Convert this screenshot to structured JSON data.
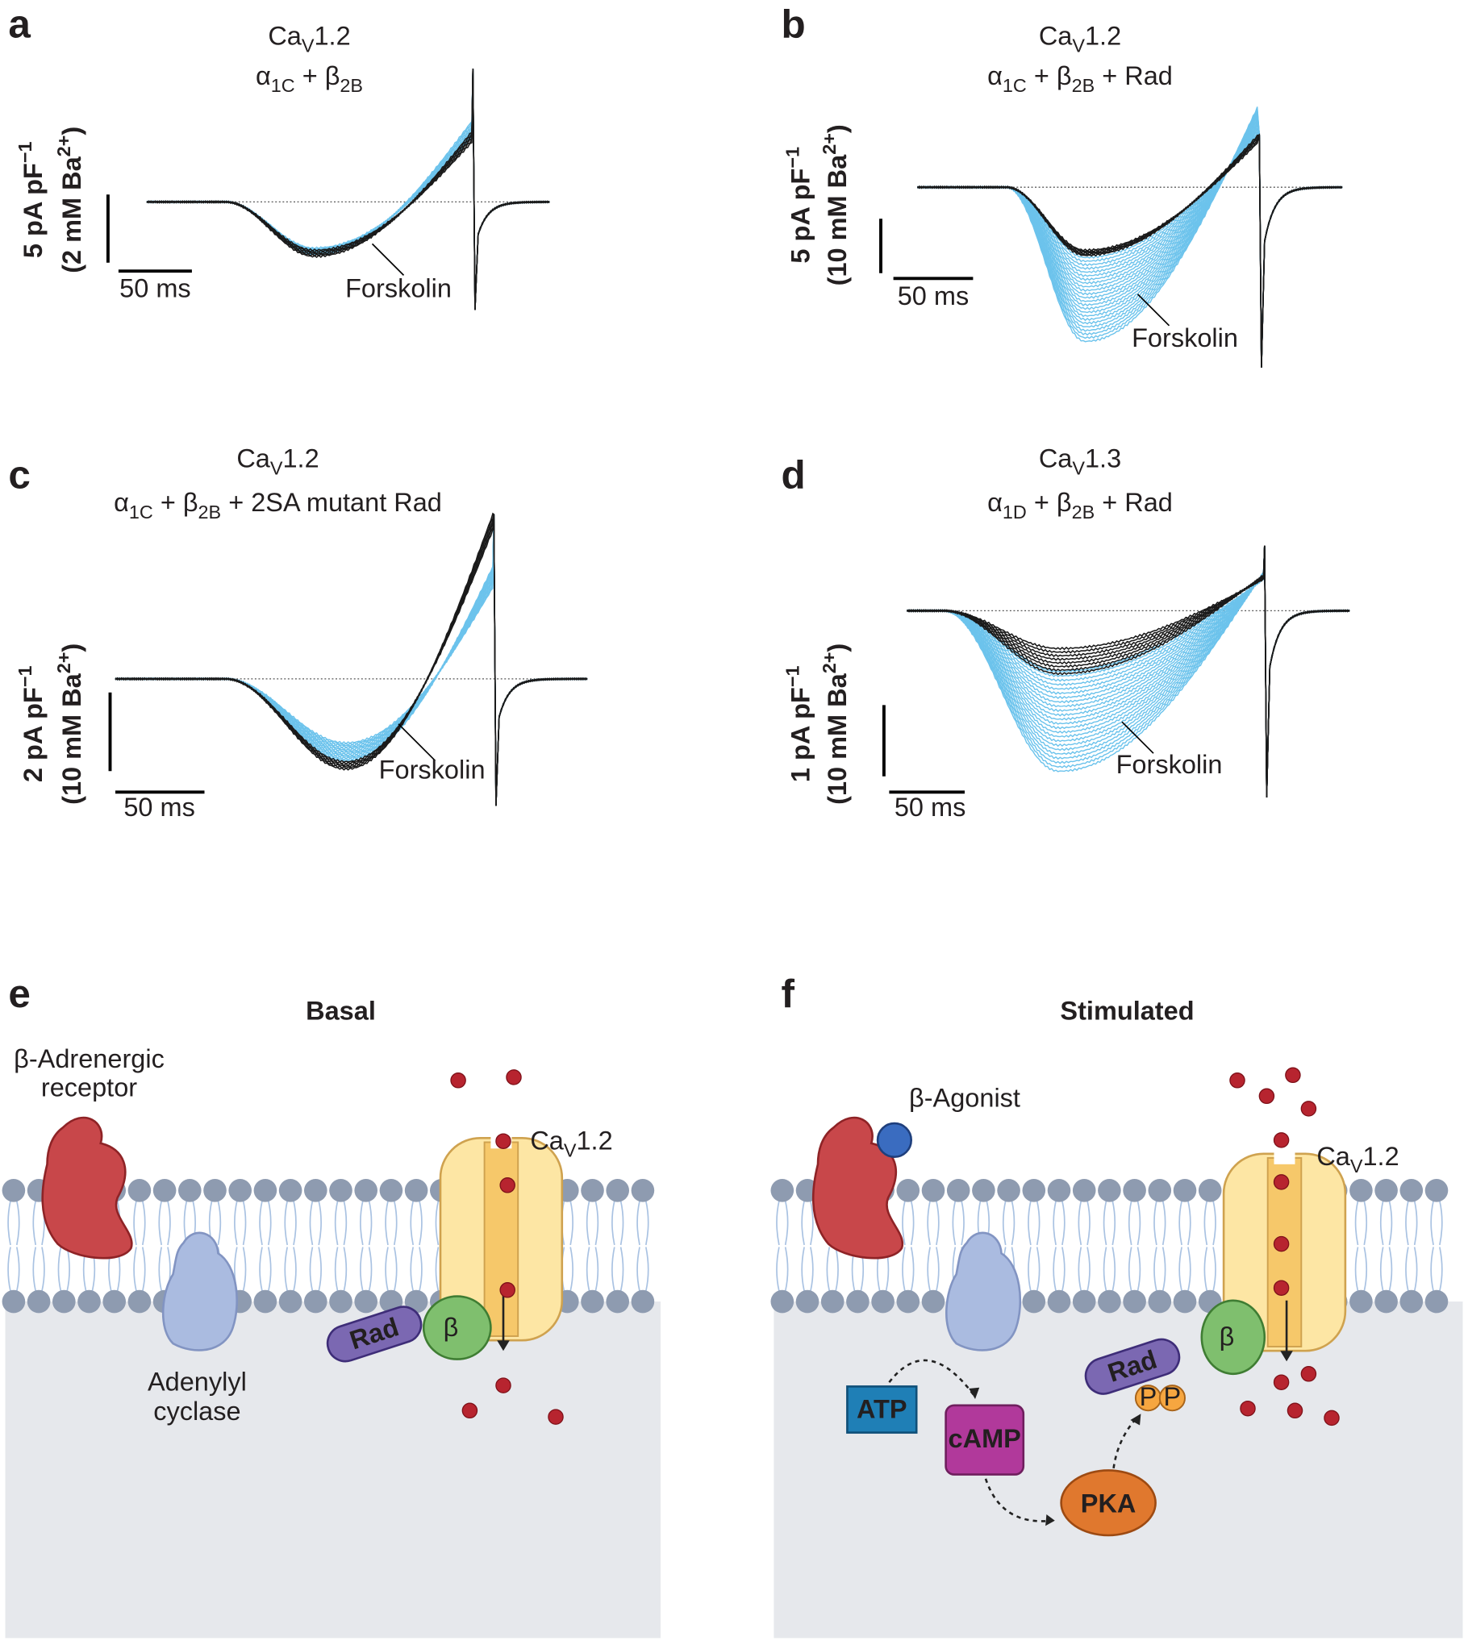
{
  "panels": [
    {
      "label": "a",
      "title": [
        [
          "Ca",
          {
            "sub": "V"
          },
          "1.2"
        ],
        [
          "α",
          {
            "sub": "1C"
          },
          " + β",
          {
            "sub": "2B"
          }
        ]
      ],
      "y_scale": [
        [
          "5 pA pF",
          {
            "sup": "−1"
          }
        ],
        [
          "(2 mM Ba",
          {
            "sup": "2+"
          },
          ")"
        ]
      ],
      "x_scale": "50 ms",
      "annotation": "Forskolin"
    },
    {
      "label": "b",
      "title": [
        [
          "Ca",
          {
            "sub": "V"
          },
          "1.2"
        ],
        [
          "α",
          {
            "sub": "1C"
          },
          " + β",
          {
            "sub": "2B"
          },
          " + Rad"
        ]
      ],
      "y_scale": [
        [
          "5 pA pF",
          {
            "sup": "−1"
          }
        ],
        [
          "(10 mM Ba",
          {
            "sup": "2+"
          },
          ")"
        ]
      ],
      "x_scale": "50 ms",
      "annotation": "Forskolin"
    },
    {
      "label": "c",
      "title": [
        [
          "Ca",
          {
            "sub": "V"
          },
          "1.2"
        ],
        [
          "α",
          {
            "sub": "1C"
          },
          " + β",
          {
            "sub": "2B"
          },
          " + 2SA mutant Rad"
        ]
      ],
      "y_scale": [
        [
          "2 pA pF",
          {
            "sup": "−1"
          }
        ],
        [
          "(10 mM Ba",
          {
            "sup": "2+"
          },
          ")"
        ]
      ],
      "x_scale": "50 ms",
      "annotation": "Forskolin"
    },
    {
      "label": "d",
      "title": [
        [
          "Ca",
          {
            "sub": "V"
          },
          "1.3"
        ],
        [
          "α",
          {
            "sub": "1D"
          },
          " + β",
          {
            "sub": "2B"
          },
          " + Rad"
        ]
      ],
      "y_scale": [
        [
          "1 pA pF",
          {
            "sup": "−1"
          }
        ],
        [
          "(10 mM Ba",
          {
            "sup": "2+"
          },
          ")"
        ]
      ],
      "x_scale": "50 ms",
      "annotation": "Forskolin"
    }
  ],
  "diagrams": [
    {
      "label": "e",
      "title": "Basal",
      "receptor": [
        "β-Adrenergic",
        "receptor"
      ],
      "channel": [
        "Ca",
        {
          "sub": "V"
        },
        "1.2"
      ],
      "cyclase": [
        "Adenylyl",
        "cyclase"
      ],
      "rad": "Rad",
      "beta": "β"
    },
    {
      "label": "f",
      "title": "Stimulated",
      "agonist": "β-Agonist",
      "channel": [
        "Ca",
        {
          "sub": "V"
        },
        "1.2"
      ],
      "atp": "ATP",
      "camp": "cAMP",
      "pka": "PKA",
      "rad": "Rad",
      "phospho": [
        "P",
        "P"
      ],
      "beta": "β"
    }
  ]
}
